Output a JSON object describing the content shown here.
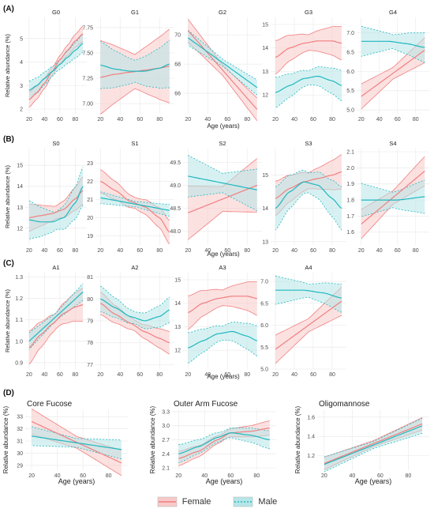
{
  "colors": {
    "female": "#F07F7F",
    "male": "#1FB8BF",
    "female_band": "#F9C9C9",
    "male_band": "#B7E6E8",
    "gray_band": "#D9D9D9",
    "panel_bg": "#FFFFFF",
    "grid": "#EBEBEB"
  },
  "common": {
    "ylabel": "Relative abundance (%)",
    "xlabel": "Age (years)"
  },
  "legend": {
    "female": "Female",
    "male": "Male"
  },
  "chart_data": [
    {
      "row": 0,
      "panel_label": "(A)",
      "type": "line",
      "title": "G0",
      "x_ticks": [
        20,
        40,
        60,
        80
      ],
      "ylim": [
        1.8,
        5.9
      ],
      "y_ticks": [
        2,
        3,
        4,
        5
      ],
      "series": [
        {
          "name": "Female",
          "x": [
            20,
            30,
            40,
            50,
            60,
            70,
            80,
            90
          ],
          "y": [
            2.4,
            2.7,
            3.1,
            3.6,
            4.1,
            4.5,
            4.9,
            5.2
          ],
          "band": 0.25
        },
        {
          "name": "Male",
          "x": [
            20,
            30,
            40,
            50,
            60,
            70,
            80,
            90
          ],
          "y": [
            2.8,
            3.0,
            3.3,
            3.6,
            3.9,
            4.2,
            4.5,
            4.8
          ],
          "band": 0.3
        }
      ]
    },
    {
      "row": 0,
      "type": "line",
      "title": "G1",
      "x_ticks": [
        20,
        40,
        60,
        80
      ],
      "ylim": [
        6.9,
        7.85
      ],
      "y_ticks": [
        7.0,
        7.25,
        7.5,
        7.75
      ],
      "series": [
        {
          "name": "Female",
          "x": [
            20,
            35,
            50,
            65,
            80,
            90
          ],
          "y": [
            7.26,
            7.29,
            7.31,
            7.33,
            7.35,
            7.37
          ],
          "band": 0.28
        },
        {
          "name": "Male",
          "x": [
            20,
            35,
            50,
            65,
            80,
            90
          ],
          "y": [
            7.38,
            7.34,
            7.32,
            7.32,
            7.35,
            7.39
          ],
          "band": 0.18
        }
      ]
    },
    {
      "row": 0,
      "type": "line",
      "title": "G2",
      "x_ticks": [
        20,
        40,
        60,
        80
      ],
      "ylim": [
        64.6,
        71.2
      ],
      "y_ticks": [
        66,
        68,
        70
      ],
      "series": [
        {
          "name": "Female",
          "x": [
            20,
            90
          ],
          "y": [
            70.3,
            64.9
          ],
          "band": 0.6
        },
        {
          "name": "Male",
          "x": [
            20,
            90
          ],
          "y": [
            69.8,
            66.4
          ],
          "band": 0.4
        }
      ]
    },
    {
      "row": 0,
      "type": "line",
      "title": "G3",
      "x_ticks": [
        20,
        40,
        60,
        80
      ],
      "ylim": [
        11.2,
        15.3
      ],
      "y_ticks": [
        12,
        13,
        14,
        15
      ],
      "series": [
        {
          "name": "Female",
          "x": [
            20,
            35,
            50,
            65,
            80,
            90
          ],
          "y": [
            13.6,
            14.0,
            14.2,
            14.3,
            14.3,
            14.2
          ],
          "band": 0.55
        },
        {
          "name": "Male",
          "x": [
            20,
            35,
            50,
            65,
            80,
            90
          ],
          "y": [
            12.1,
            12.4,
            12.7,
            12.8,
            12.6,
            12.4
          ],
          "band": 0.5
        }
      ]
    },
    {
      "row": 0,
      "type": "line",
      "title": "G4",
      "x_ticks": [
        20,
        40,
        60,
        80
      ],
      "ylim": [
        4.9,
        7.4
      ],
      "y_ticks": [
        5.0,
        5.5,
        6.0,
        6.5,
        7.0
      ],
      "series": [
        {
          "name": "Female",
          "x": [
            20,
            90
          ],
          "y": [
            5.35,
            6.55
          ],
          "band": 0.25
        },
        {
          "name": "Male",
          "x": [
            20,
            50,
            70,
            90
          ],
          "y": [
            6.78,
            6.78,
            6.72,
            6.62
          ],
          "band": 0.3
        }
      ]
    },
    {
      "row": 1,
      "panel_label": "(B)",
      "type": "line",
      "title": "S0",
      "x_ticks": [
        20,
        40,
        60,
        80
      ],
      "ylim": [
        11.2,
        15.8
      ],
      "y_ticks": [
        12,
        13,
        14,
        15
      ],
      "series": [
        {
          "name": "Female",
          "x": [
            20,
            35,
            50,
            65,
            80,
            90
          ],
          "y": [
            12.5,
            12.6,
            12.7,
            12.9,
            13.4,
            13.8
          ],
          "band": 0.5
        },
        {
          "name": "Male",
          "x": [
            20,
            35,
            50,
            65,
            80,
            90
          ],
          "y": [
            12.4,
            12.3,
            12.3,
            12.5,
            13.2,
            14.0
          ],
          "band": 0.7
        }
      ]
    },
    {
      "row": 1,
      "type": "line",
      "title": "S1",
      "x_ticks": [
        20,
        40,
        60,
        80
      ],
      "ylim": [
        18.5,
        23.8
      ],
      "y_ticks": [
        19,
        20,
        21,
        22,
        23
      ],
      "series": [
        {
          "name": "Female",
          "x": [
            20,
            35,
            50,
            65,
            80,
            90
          ],
          "y": [
            22.0,
            21.5,
            20.9,
            20.6,
            20.0,
            19.2
          ],
          "band": 0.5
        },
        {
          "name": "Male",
          "x": [
            20,
            90
          ],
          "y": [
            21.1,
            20.4
          ],
          "band": 0.25
        }
      ]
    },
    {
      "row": 1,
      "type": "line",
      "title": "S2",
      "x_ticks": [
        20,
        40,
        60,
        80
      ],
      "ylim": [
        47.7,
        49.8
      ],
      "y_ticks": [
        48.0,
        48.5,
        49.0,
        49.5
      ],
      "series": [
        {
          "name": "Female",
          "x": [
            20,
            90
          ],
          "y": [
            48.4,
            49.0
          ],
          "band": 0.45
        },
        {
          "name": "Male",
          "x": [
            20,
            90
          ],
          "y": [
            49.2,
            48.9
          ],
          "band": 0.35
        }
      ]
    },
    {
      "row": 1,
      "type": "line",
      "title": "S3",
      "x_ticks": [
        20,
        40,
        60,
        80
      ],
      "ylim": [
        12.9,
        15.8
      ],
      "y_ticks": [
        13,
        14,
        15
      ],
      "series": [
        {
          "name": "Female",
          "x": [
            20,
            35,
            50,
            65,
            80,
            90
          ],
          "y": [
            14.3,
            14.6,
            14.8,
            14.9,
            15.0,
            15.1
          ],
          "band": 0.4
        },
        {
          "name": "Male",
          "x": [
            20,
            35,
            50,
            65,
            80,
            90
          ],
          "y": [
            14.0,
            14.5,
            14.8,
            14.7,
            14.3,
            14.0
          ],
          "band": 0.5
        }
      ]
    },
    {
      "row": 1,
      "type": "line",
      "title": "S4",
      "x_ticks": [
        20,
        40,
        60,
        80
      ],
      "ylim": [
        1.52,
        2.12
      ],
      "y_ticks": [
        1.6,
        1.7,
        1.8,
        1.9,
        2.0,
        2.1
      ],
      "series": [
        {
          "name": "Female",
          "x": [
            20,
            90
          ],
          "y": [
            1.65,
            1.98
          ],
          "band": 0.07
        },
        {
          "name": "Male",
          "x": [
            20,
            60,
            90
          ],
          "y": [
            1.8,
            1.8,
            1.82
          ],
          "band": 0.08
        }
      ]
    },
    {
      "row": 2,
      "panel_label": "(C)",
      "type": "line",
      "title": "A1",
      "x_ticks": [
        20,
        40,
        60,
        80
      ],
      "ylim": [
        0.87,
        1.32
      ],
      "y_ticks": [
        0.9,
        1.0,
        1.1,
        1.2,
        1.3
      ],
      "series": [
        {
          "name": "Female",
          "x": [
            20,
            35,
            50,
            65,
            80,
            90
          ],
          "y": [
            0.97,
            1.03,
            1.08,
            1.13,
            1.16,
            1.17
          ],
          "band": 0.06
        },
        {
          "name": "Male",
          "x": [
            20,
            90
          ],
          "y": [
            1.0,
            1.23
          ],
          "band": 0.03
        }
      ]
    },
    {
      "row": 2,
      "type": "line",
      "title": "A2",
      "x_ticks": [
        20,
        40,
        60,
        80
      ],
      "ylim": [
        76.8,
        81.2
      ],
      "y_ticks": [
        77,
        78,
        79,
        80,
        81
      ],
      "series": [
        {
          "name": "Female",
          "x": [
            20,
            35,
            50,
            65,
            80,
            90
          ],
          "y": [
            79.8,
            79.3,
            78.9,
            78.5,
            78.2,
            78.0
          ],
          "band": 0.4
        },
        {
          "name": "Male",
          "x": [
            20,
            35,
            50,
            65,
            80,
            90
          ],
          "y": [
            80.0,
            79.6,
            79.2,
            79.0,
            79.2,
            79.5
          ],
          "band": 0.45
        }
      ]
    },
    {
      "row": 2,
      "type": "line",
      "title": "A3",
      "x_ticks": [
        20,
        40,
        60,
        80
      ],
      "ylim": [
        11.2,
        15.3
      ],
      "y_ticks": [
        12,
        13,
        14,
        15
      ],
      "series": [
        {
          "name": "Female",
          "x": [
            20,
            35,
            50,
            65,
            80,
            90
          ],
          "y": [
            13.6,
            14.0,
            14.2,
            14.3,
            14.3,
            14.2
          ],
          "band": 0.55
        },
        {
          "name": "Male",
          "x": [
            20,
            35,
            50,
            65,
            80,
            90
          ],
          "y": [
            12.1,
            12.4,
            12.7,
            12.8,
            12.6,
            12.4
          ],
          "band": 0.5
        }
      ]
    },
    {
      "row": 2,
      "type": "line",
      "title": "A4",
      "x_ticks": [
        20,
        40,
        60,
        80
      ],
      "ylim": [
        5.0,
        7.2
      ],
      "y_ticks": [
        5.0,
        5.5,
        6.0,
        6.5,
        7.0
      ],
      "series": [
        {
          "name": "Female",
          "x": [
            20,
            90
          ],
          "y": [
            5.45,
            6.55
          ],
          "band": 0.25
        },
        {
          "name": "Male",
          "x": [
            20,
            50,
            70,
            90
          ],
          "y": [
            6.8,
            6.8,
            6.74,
            6.62
          ],
          "band": 0.25
        }
      ]
    },
    {
      "row": 3,
      "panel_label": "(D)",
      "type": "line",
      "title": "Core Fucose",
      "x_ticks": [
        20,
        40,
        60,
        80
      ],
      "ylim": [
        28.6,
        33.6
      ],
      "y_ticks": [
        29,
        30,
        31,
        32,
        33
      ],
      "series": [
        {
          "name": "Female",
          "x": [
            20,
            90
          ],
          "y": [
            32.6,
            29.2
          ],
          "band": 0.8
        },
        {
          "name": "Male",
          "x": [
            20,
            90
          ],
          "y": [
            31.4,
            30.3
          ],
          "band": 0.6
        }
      ]
    },
    {
      "row": 3,
      "type": "line",
      "title": "Outer Arm Fucose",
      "x_ticks": [
        20,
        40,
        60,
        80
      ],
      "ylim": [
        2.05,
        3.35
      ],
      "y_ticks": [
        2.1,
        2.4,
        2.7,
        3.0,
        3.3
      ],
      "series": [
        {
          "name": "Female",
          "x": [
            20,
            35,
            50,
            60,
            75,
            90
          ],
          "y": [
            2.3,
            2.45,
            2.7,
            2.85,
            2.88,
            2.95
          ],
          "band": 0.12
        },
        {
          "name": "Male",
          "x": [
            20,
            35,
            50,
            60,
            75,
            90
          ],
          "y": [
            2.4,
            2.55,
            2.75,
            2.85,
            2.8,
            2.7
          ],
          "band": 0.15
        }
      ]
    },
    {
      "row": 3,
      "type": "line",
      "title": "Oligomannose",
      "x_ticks": [
        20,
        40,
        60,
        80
      ],
      "ylim": [
        1.05,
        1.68
      ],
      "y_ticks": [
        1.2,
        1.4,
        1.6
      ],
      "series": [
        {
          "name": "Female",
          "x": [
            20,
            90
          ],
          "y": [
            1.12,
            1.53
          ],
          "band": 0.05
        },
        {
          "name": "Male",
          "x": [
            20,
            90
          ],
          "y": [
            1.11,
            1.51
          ],
          "band": 0.06
        }
      ]
    }
  ]
}
